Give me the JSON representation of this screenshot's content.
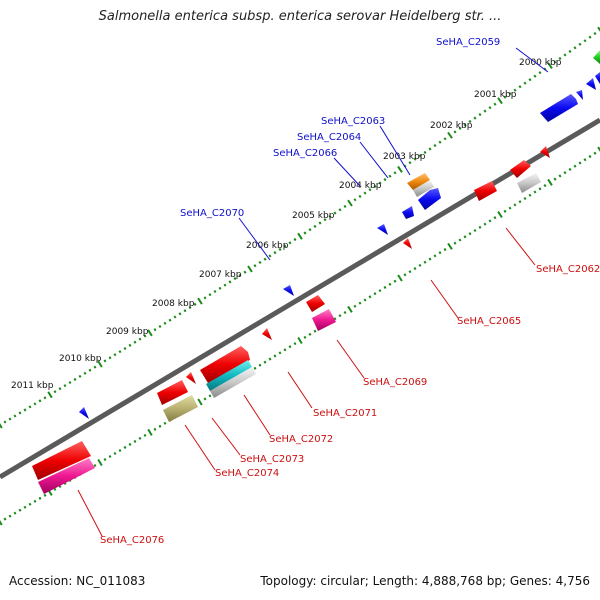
{
  "title": "Salmonella enterica subsp. enterica serovar Heidelberg str. ...",
  "footer": {
    "accession": "Accession: NC_011083",
    "summary": "Topology: circular; Length: 4,888,768 bp; Genes: 4,756"
  },
  "colors": {
    "backbone": "#808080",
    "ticks": "#1a8a1a",
    "forward_label": "#1010cc",
    "reverse_label": "#cc1010"
  },
  "kbp_labels": [
    "2000 kbp",
    "2001 kbp",
    "2002 kbp",
    "2003 kbp",
    "2004 kbp",
    "2005 kbp",
    "2006 kbp",
    "2007 kbp",
    "2008 kbp",
    "2009 kbp",
    "2010 kbp",
    "2011 kbp"
  ],
  "forward_genes": [
    {
      "label": "SeHA_C2059",
      "color": "#1010cc"
    },
    {
      "label": "SeHA_C2063",
      "color": "#1010cc"
    },
    {
      "label": "SeHA_C2064",
      "color": "#1010cc"
    },
    {
      "label": "SeHA_C2066",
      "color": "#1010cc"
    },
    {
      "label": "SeHA_C2070",
      "color": "#1010cc"
    }
  ],
  "reverse_genes": [
    {
      "label": "SeHA_C2062",
      "color": "#cc1010"
    },
    {
      "label": "SeHA_C2065",
      "color": "#cc1010"
    },
    {
      "label": "SeHA_C2069",
      "color": "#cc1010"
    },
    {
      "label": "SeHA_C2071",
      "color": "#cc1010"
    },
    {
      "label": "SeHA_C2072",
      "color": "#cc1010"
    },
    {
      "label": "SeHA_C2073",
      "color": "#cc1010"
    },
    {
      "label": "SeHA_C2074",
      "color": "#cc1010"
    },
    {
      "label": "SeHA_C2076",
      "color": "#cc1010"
    }
  ]
}
